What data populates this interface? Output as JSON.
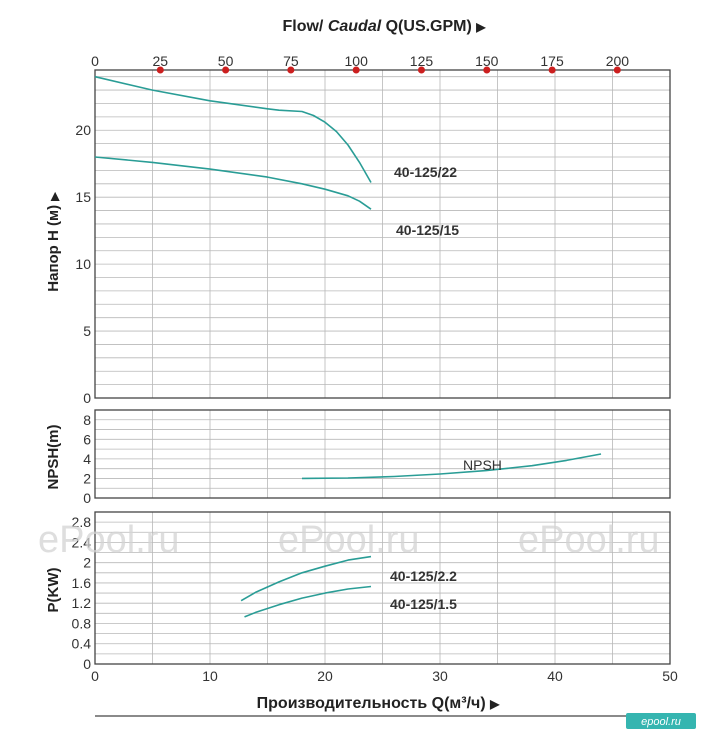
{
  "top_title": {
    "flow": "Flow/",
    "caudal": "Caudal",
    "unit": "Q(US.GPM)",
    "arrow": "▶"
  },
  "bottom_title": {
    "text": "Производительность Q(м³/ч)",
    "arrow": "▶"
  },
  "watermark": "ePool.ru",
  "logo": "epool.ru",
  "colors": {
    "curve": "#2a9d96",
    "grid": "#b8b8b8",
    "frame": "#444444",
    "marker": "#cc1f1f",
    "logo_bg": "#35b5b0"
  },
  "chart_data": [
    {
      "type": "line",
      "panel": "head",
      "ylabel": "Напор H (м)",
      "ylabel_arrow": "▶",
      "xlim": [
        0,
        50
      ],
      "ylim": [
        0,
        24.5
      ],
      "yticks": [
        0,
        5,
        10,
        15,
        20
      ],
      "top_axis": {
        "label": "Flow/ Caudal Q(US.GPM)",
        "ticks": [
          0,
          25,
          50,
          75,
          100,
          125,
          150,
          175,
          200
        ],
        "marker_positions_m3h": [
          5.68,
          11.36,
          17.03,
          22.71,
          28.39,
          34.07,
          39.75,
          45.42
        ]
      },
      "series": [
        {
          "name": "40-125/22",
          "x": [
            0,
            5,
            10,
            15,
            16,
            18,
            19,
            20,
            21,
            22,
            23,
            24
          ],
          "y": [
            24,
            23,
            22.2,
            21.6,
            21.5,
            21.4,
            21.1,
            20.6,
            19.9,
            18.9,
            17.6,
            16.1
          ]
        },
        {
          "name": "40-125/15",
          "x": [
            0,
            5,
            10,
            15,
            18,
            20,
            22,
            23,
            24
          ],
          "y": [
            18,
            17.6,
            17.1,
            16.5,
            16,
            15.6,
            15.1,
            14.7,
            14.1
          ]
        }
      ]
    },
    {
      "type": "line",
      "panel": "npsh",
      "ylabel": "NPSH(m)",
      "xlim": [
        0,
        50
      ],
      "ylim": [
        0,
        9
      ],
      "yticks": [
        0,
        2,
        4,
        6,
        8
      ],
      "series": [
        {
          "name": "NPSH",
          "x": [
            18,
            22,
            26,
            30,
            34,
            38,
            41,
            44
          ],
          "y": [
            2,
            2.05,
            2.2,
            2.45,
            2.8,
            3.3,
            3.85,
            4.5
          ]
        }
      ]
    },
    {
      "type": "line",
      "panel": "power",
      "ylabel": "P(KW)",
      "xlabel": "Производительность Q(м³/ч)",
      "xlim": [
        0,
        50
      ],
      "xticks": [
        0,
        10,
        20,
        30,
        40,
        50
      ],
      "ylim": [
        0,
        3
      ],
      "yticks": [
        0,
        0.4,
        0.8,
        1.2,
        1.6,
        2,
        2.4,
        2.8
      ],
      "series": [
        {
          "name": "40-125/2.2",
          "x": [
            12.7,
            14,
            16,
            18,
            20,
            22,
            24
          ],
          "y": [
            1.25,
            1.42,
            1.62,
            1.8,
            1.93,
            2.05,
            2.12
          ]
        },
        {
          "name": "40-125/1.5",
          "x": [
            13,
            14,
            16,
            18,
            20,
            22,
            24
          ],
          "y": [
            0.93,
            1.02,
            1.17,
            1.3,
            1.4,
            1.48,
            1.53
          ]
        }
      ]
    }
  ]
}
